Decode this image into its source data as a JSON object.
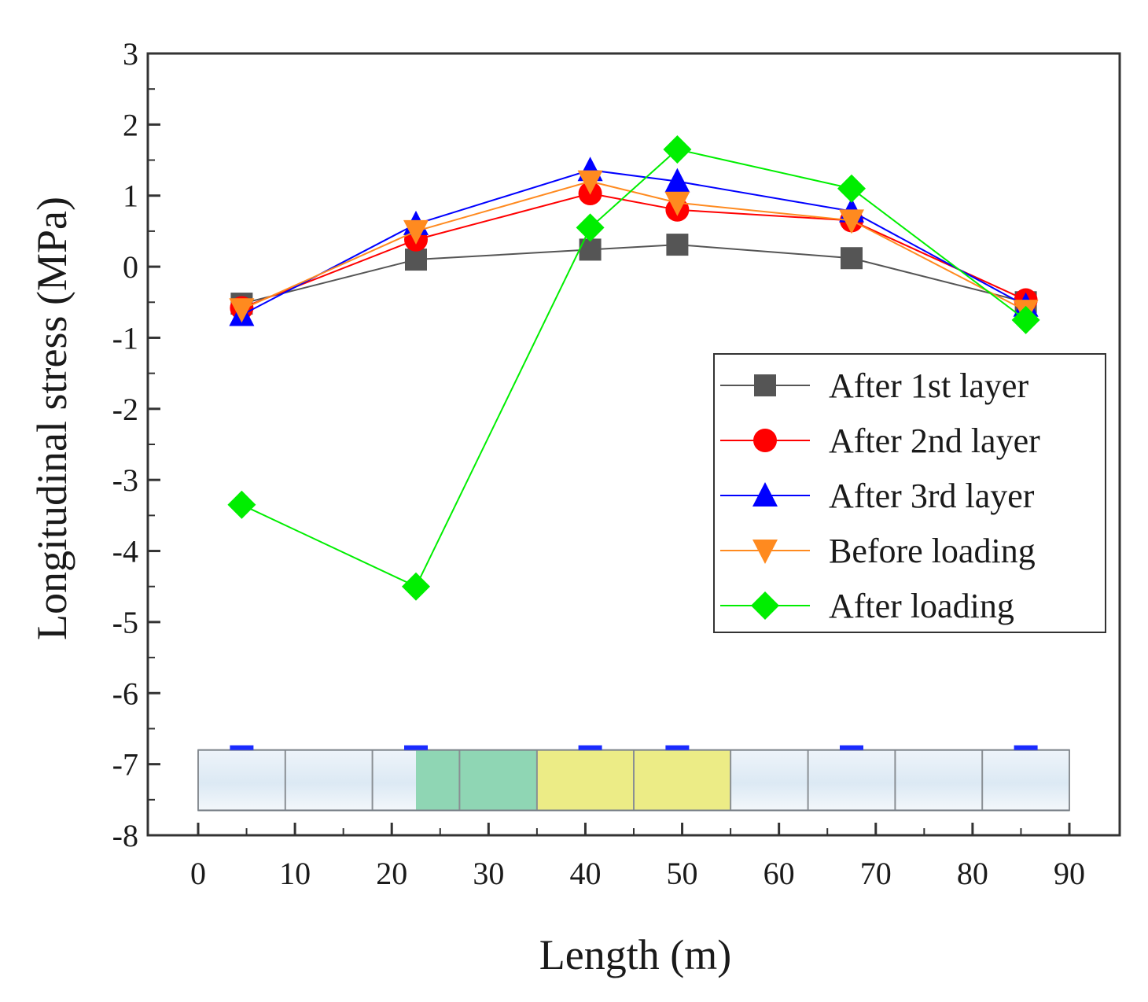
{
  "chart_data": {
    "type": "line",
    "xlabel": "Length (m)",
    "ylabel": "Longitudinal stress (MPa)",
    "xlim": [
      -5,
      95
    ],
    "ylim": [
      -8,
      3
    ],
    "x_ticks": [
      "0",
      "10",
      "20",
      "30",
      "40",
      "50",
      "60",
      "70",
      "80",
      "90"
    ],
    "y_ticks": [
      "3",
      "2",
      "1",
      "0",
      "-1",
      "-2",
      "-3",
      "-4",
      "-5",
      "-6",
      "-7",
      "-8"
    ],
    "legend_position": "middle-right",
    "series": [
      {
        "name": "After 1st layer",
        "color": "#555555",
        "marker": "square",
        "x": [
          4.5,
          22.5,
          40.5,
          49.5,
          67.5,
          85.5
        ],
        "y": [
          -0.52,
          0.1,
          0.24,
          0.31,
          0.12,
          -0.5
        ]
      },
      {
        "name": "After 2nd layer",
        "color": "#ff0000",
        "marker": "circle",
        "x": [
          4.5,
          22.5,
          40.5,
          49.5,
          67.5,
          85.5
        ],
        "y": [
          -0.58,
          0.38,
          1.03,
          0.8,
          0.65,
          -0.47
        ]
      },
      {
        "name": "After 3rd layer",
        "color": "#0000ff",
        "marker": "triangle-up",
        "x": [
          4.5,
          22.5,
          40.5,
          49.5,
          67.5,
          85.5
        ],
        "y": [
          -0.68,
          0.6,
          1.36,
          1.2,
          0.78,
          -0.55
        ]
      },
      {
        "name": "Before loading",
        "color": "#ff8a1f",
        "marker": "triangle-down",
        "x": [
          4.5,
          22.5,
          40.5,
          49.5,
          67.5,
          85.5
        ],
        "y": [
          -0.6,
          0.5,
          1.2,
          0.9,
          0.65,
          -0.62
        ]
      },
      {
        "name": "After loading",
        "color": "#00ee00",
        "marker": "diamond",
        "x": [
          4.5,
          22.5,
          40.5,
          49.5,
          67.5,
          85.5
        ],
        "y": [
          -3.35,
          -4.5,
          0.55,
          1.65,
          1.1,
          -0.75
        ]
      }
    ],
    "inset_diagram": {
      "span": [
        0,
        90
      ],
      "segment_boundaries": [
        0,
        9,
        18,
        27,
        35,
        45,
        55,
        63,
        72,
        81,
        90
      ],
      "highlight_green": [
        22.5,
        35
      ],
      "highlight_yellow": [
        35,
        55
      ],
      "sensor_positions": [
        4.5,
        22.5,
        40.5,
        49.5,
        67.5,
        85.5
      ],
      "colors": {
        "segment_fill": "#dce9f4",
        "green_fill": "#8fd6b4",
        "yellow_fill": "#ecec86",
        "sensor": "#1a2bff"
      }
    }
  }
}
